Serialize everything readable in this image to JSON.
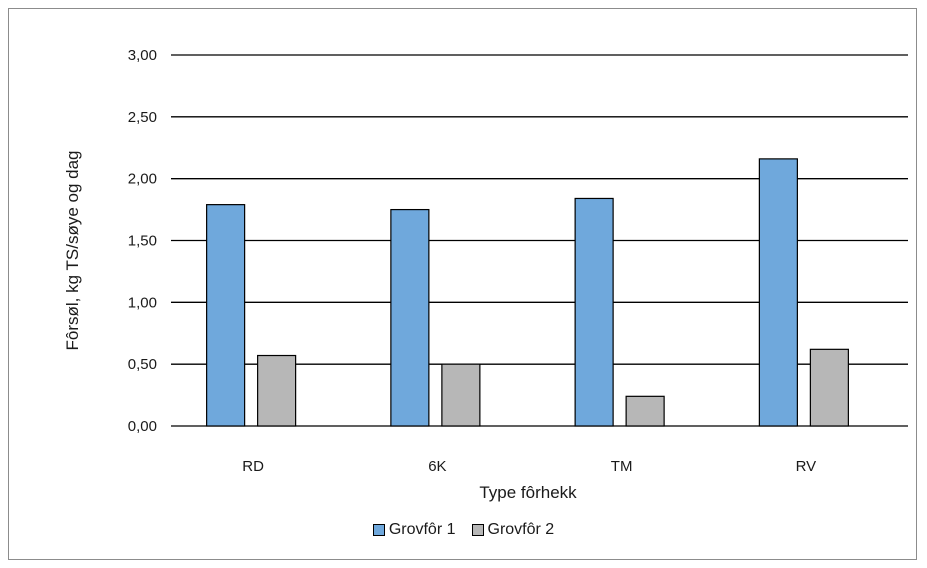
{
  "chart_data": {
    "type": "bar",
    "title": "",
    "xlabel": "Type fôrhekk",
    "ylabel": "Fôrsøl, kg TS/søye og dag",
    "categories": [
      "RD",
      "6K",
      "TM",
      "RV"
    ],
    "series": [
      {
        "name": "Grovfôr 1",
        "values": [
          1.79,
          1.75,
          1.84,
          2.16
        ],
        "color": "#6fa8dc"
      },
      {
        "name": "Grovfôr 2",
        "values": [
          0.57,
          0.5,
          0.24,
          0.62
        ],
        "color": "#b7b7b7"
      }
    ],
    "ylim": [
      0,
      3
    ],
    "yticks": [
      "0,00",
      "0,50",
      "1,00",
      "1,50",
      "2,00",
      "2,50",
      "3,00"
    ],
    "grid": true,
    "legend_position": "bottom"
  }
}
